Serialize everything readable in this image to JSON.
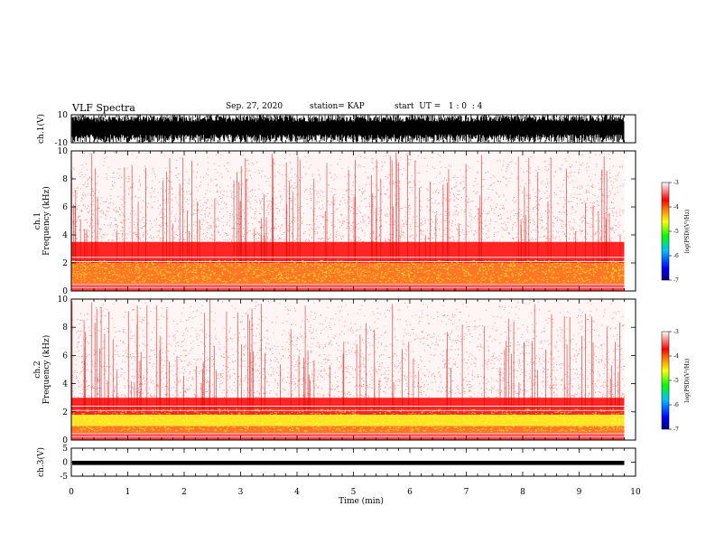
{
  "header": {
    "title": "VLF Spectra",
    "date": "Sep. 27, 2020",
    "station": "station= KAP",
    "start": "start  UT =   1 : 0  : 4"
  },
  "chart_data": [
    {
      "type": "line",
      "name": "ch1-waveform",
      "ylabel": "ch.1(V)",
      "ylim": [
        -10,
        10
      ],
      "yticks": [
        "10",
        "-10"
      ],
      "xlim": [
        0,
        10
      ],
      "description_values": {
        "envelope_min": -10,
        "envelope_max": 10
      }
    },
    {
      "type": "heatmap",
      "name": "ch1-spectrogram",
      "ylabel": "ch.1\nFrequency (kHz)",
      "ylim": [
        0,
        10
      ],
      "yticks": [
        "0",
        "2",
        "4",
        "6",
        "8",
        "10"
      ],
      "xlim": [
        0,
        9.8
      ],
      "colorbar": {
        "label": "log(PSD)(V²/Hz)",
        "range": [
          -7,
          -3
        ],
        "ticks": [
          "-3",
          "-4",
          "-5",
          "-6",
          "-7"
        ]
      },
      "bands_khz": [
        {
          "from": 0.5,
          "to": 2.0,
          "level": -4.3
        },
        {
          "from": 2.0,
          "to": 3.5,
          "level": -4.0
        },
        {
          "from": 3.5,
          "to": 10.0,
          "level": -3.2
        }
      ]
    },
    {
      "type": "heatmap",
      "name": "ch2-spectrogram",
      "ylabel": "ch.2\nFrequency (kHz)",
      "ylim": [
        0,
        10
      ],
      "yticks": [
        "0",
        "2",
        "4",
        "6",
        "8",
        "10"
      ],
      "xlim": [
        0,
        9.8
      ],
      "colorbar": {
        "label": "log(PSD)(V²/Hz)",
        "range": [
          -7,
          -3
        ],
        "ticks": [
          "-3",
          "-4",
          "-5",
          "-6",
          "-7"
        ]
      },
      "bands_khz": [
        {
          "from": 0.5,
          "to": 1.0,
          "level": -4.5
        },
        {
          "from": 1.0,
          "to": 1.8,
          "level": -4.8
        },
        {
          "from": 1.8,
          "to": 3.0,
          "level": -4.0
        },
        {
          "from": 3.0,
          "to": 10.0,
          "level": -3.2
        }
      ]
    },
    {
      "type": "line",
      "name": "ch3-waveform",
      "ylabel": "ch.3(V)",
      "ylim": [
        -5,
        5
      ],
      "yticks": [
        "5",
        "0",
        "-5"
      ],
      "xlim": [
        0,
        10
      ],
      "description_values": {
        "envelope_min": -1,
        "envelope_max": 0.5
      }
    }
  ],
  "xaxis": {
    "label": "Time (min)",
    "ticks": [
      "0",
      "1",
      "2",
      "3",
      "4",
      "5",
      "6",
      "7",
      "8",
      "9",
      "10"
    ],
    "range": [
      0,
      10
    ]
  },
  "colors": {
    "high": "#ff0000",
    "mid": "#ffff00",
    "low": "#00ff00",
    "background": "#ffffff"
  }
}
